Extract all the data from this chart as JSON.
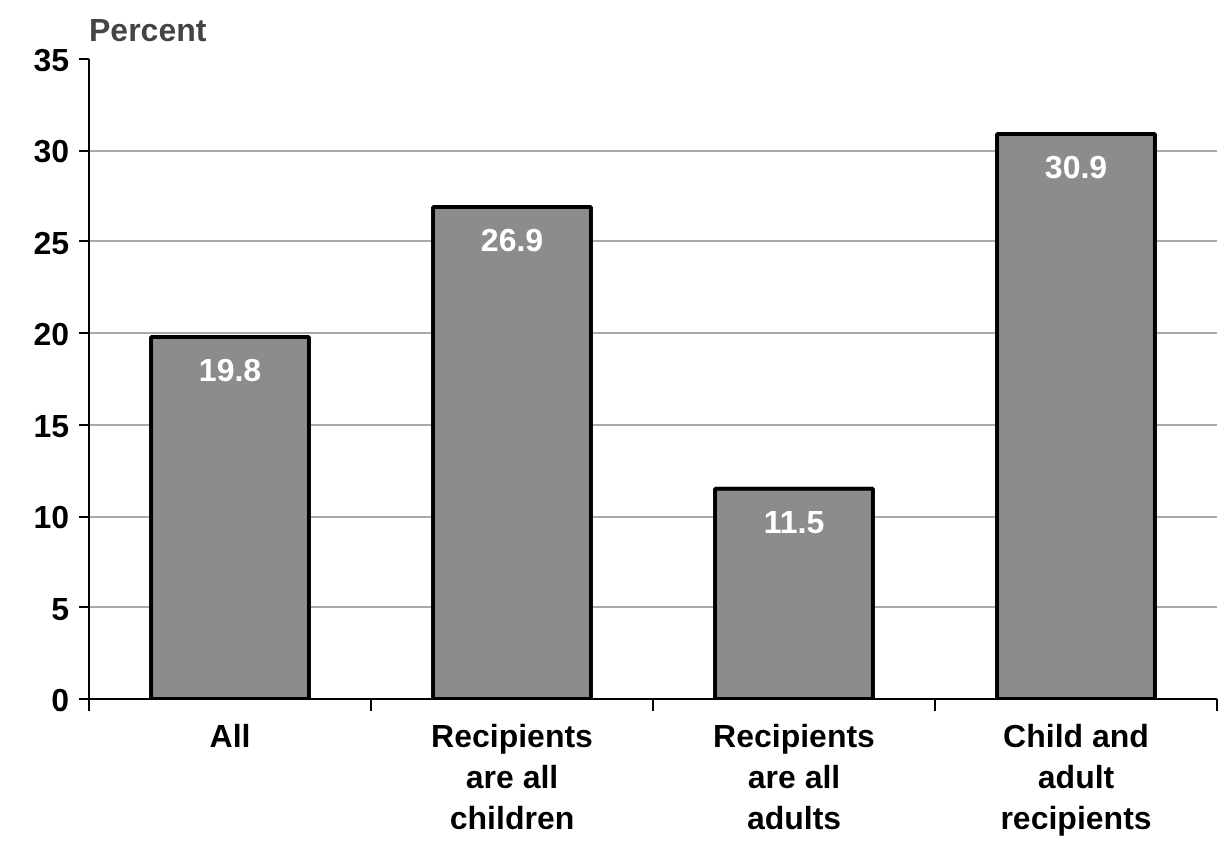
{
  "chart_data": {
    "type": "bar",
    "ylabel": "Percent",
    "categories": [
      "All",
      "Recipients\nare all\nchildren",
      "Recipients\nare all\nadults",
      "Child and\nadult\nrecipients"
    ],
    "values": [
      19.8,
      26.9,
      11.5,
      30.9
    ],
    "color": "#8c8c8c",
    "ylim": [
      0,
      35
    ],
    "yticks": [
      0,
      5,
      10,
      15,
      20,
      25,
      30,
      35
    ],
    "grid": "y",
    "data_labels": true
  }
}
